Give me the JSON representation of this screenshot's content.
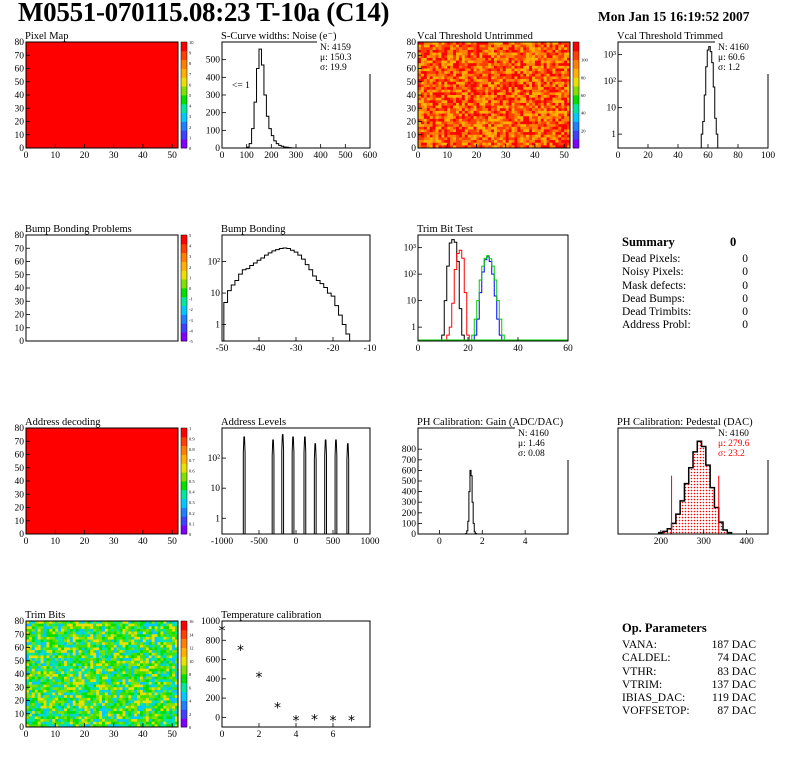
{
  "header": {
    "title": "M0551-070115.08:23 T-10a (C14)",
    "date": "Mon Jan 15 16:19:52 2007"
  },
  "colors": {
    "palette": [
      "#8000ff",
      "#4040ff",
      "#2080ff",
      "#00c8ff",
      "#00e8a0",
      "#00e000",
      "#80e000",
      "#e8e000",
      "#ffb000",
      "#ff8000",
      "#ff4000",
      "#ff0000"
    ],
    "histogram": "#000000",
    "trim_red": "#ff0000",
    "trim_green": "#00cc00",
    "trim_blue": "#0000ff",
    "pedestal_fill": "#ff0000",
    "fit_line": "#ff0000"
  },
  "summary": {
    "title": "Summary",
    "total": "0",
    "items": [
      {
        "label": "Dead Pixels:",
        "value": "0"
      },
      {
        "label": "Noisy Pixels:",
        "value": "0"
      },
      {
        "label": "Mask defects:",
        "value": "0"
      },
      {
        "label": "Dead Bumps:",
        "value": "0"
      },
      {
        "label": "Dead Trimbits:",
        "value": "0"
      },
      {
        "label": "Address Probl:",
        "value": "0"
      }
    ]
  },
  "op_params": {
    "title": "Op. Parameters",
    "items": [
      {
        "label": "VANA:",
        "value": "187 DAC"
      },
      {
        "label": "CALDEL:",
        "value": "74 DAC"
      },
      {
        "label": "VTHR:",
        "value": "83 DAC"
      },
      {
        "label": "VTRIM:",
        "value": "137 DAC"
      },
      {
        "label": "IBIAS_DAC:",
        "value": "119 DAC"
      },
      {
        "label": "VOFFSETOP:",
        "value": "87 DAC"
      }
    ]
  },
  "chart_data": [
    {
      "id": "pixel-map",
      "type": "heatmap",
      "title": "Pixel Map",
      "xlim": [
        0,
        52
      ],
      "ylim": [
        0,
        80
      ],
      "xticks": [
        0,
        10,
        20,
        30,
        40,
        50
      ],
      "yticks": [
        0,
        10,
        20,
        30,
        40,
        50,
        60,
        70,
        80
      ],
      "fill": "uniform",
      "value": 10,
      "zlim": [
        0,
        10
      ],
      "zticks": [
        0,
        1,
        2,
        3,
        4,
        5,
        6,
        7,
        8,
        9,
        10
      ]
    },
    {
      "id": "scurve-noise",
      "type": "line",
      "title": "S-Curve widths: Noise (e⁻)",
      "xlim": [
        0,
        600
      ],
      "ylim": [
        0,
        600
      ],
      "xticks": [
        0,
        100,
        200,
        300,
        400,
        500,
        600
      ],
      "yticks": [
        0,
        100,
        200,
        300,
        400,
        500
      ],
      "annotation": "<= 1",
      "stats": [
        "N: 4159",
        "μ: 150.3",
        "σ: 19.9"
      ],
      "x": [
        95,
        105,
        115,
        125,
        135,
        145,
        155,
        165,
        175,
        185,
        195,
        205,
        215,
        225,
        235,
        245,
        255,
        265,
        275,
        285,
        295
      ],
      "values": [
        0,
        5,
        25,
        110,
        260,
        450,
        560,
        470,
        300,
        180,
        110,
        70,
        40,
        25,
        15,
        10,
        6,
        4,
        2,
        1,
        0
      ]
    },
    {
      "id": "vcal-untrimmed",
      "type": "heatmap",
      "title": "Vcal Threshold Untrimmed",
      "xlim": [
        0,
        52
      ],
      "ylim": [
        0,
        80
      ],
      "xticks": [
        0,
        10,
        20,
        30,
        40,
        50
      ],
      "yticks": [
        0,
        10,
        20,
        30,
        40,
        50,
        60,
        70,
        80
      ],
      "fill": "noise",
      "colors": [
        "#ff0000",
        "#ff4000",
        "#ff8000",
        "#ffb000"
      ],
      "zlim": [
        0,
        120
      ],
      "zticks": [
        20,
        40,
        60,
        80,
        100
      ]
    },
    {
      "id": "vcal-trimmed",
      "type": "line",
      "title": "Vcal Threshold Trimmed",
      "log": true,
      "xlim": [
        0,
        100
      ],
      "ylim": [
        0.3,
        3000
      ],
      "xticks": [
        0,
        20,
        40,
        60,
        80,
        100
      ],
      "yticks": [
        1,
        10,
        100,
        1000
      ],
      "ytick_labels": [
        "1",
        "10",
        "10²",
        "10³"
      ],
      "stats": [
        "N: 4160",
        "μ: 60.6",
        "σ:  1.2"
      ],
      "x": [
        56,
        57,
        58,
        59,
        60,
        61,
        62,
        63,
        64,
        65,
        66
      ],
      "values": [
        1,
        3,
        30,
        350,
        1500,
        2000,
        1300,
        500,
        60,
        4,
        1
      ]
    },
    {
      "id": "bump-bonding-problems",
      "type": "heatmap",
      "title": "Bump Bonding Problems",
      "xlim": [
        0,
        52
      ],
      "ylim": [
        0,
        80
      ],
      "xticks": [],
      "yticks": [
        0,
        10,
        20,
        30,
        40,
        50,
        60,
        70,
        80
      ],
      "fill": "empty",
      "zlim": [
        -5,
        5
      ],
      "zticks": [
        -5,
        -4,
        -3,
        -2,
        -1,
        0,
        1,
        2,
        3,
        4,
        5
      ]
    },
    {
      "id": "bump-bonding",
      "type": "line",
      "title": "Bump Bonding",
      "log": true,
      "xlim": [
        -50,
        -10
      ],
      "ylim": [
        0.3,
        700
      ],
      "xticks": [
        -50,
        -40,
        -30,
        -20,
        -10
      ],
      "yticks": [
        1,
        10,
        100
      ],
      "ytick_labels": [
        "1",
        "10",
        "10²"
      ],
      "x": [
        -49,
        -48,
        -47,
        -46,
        -45,
        -44,
        -43,
        -42,
        -41,
        -40,
        -39,
        -38,
        -37,
        -36,
        -35,
        -34,
        -33,
        -32,
        -31,
        -30,
        -29,
        -28,
        -27,
        -26,
        -25,
        -24,
        -23,
        -22,
        -21,
        -20,
        -19,
        -18,
        -17,
        -16
      ],
      "values": [
        5,
        12,
        18,
        25,
        40,
        55,
        60,
        75,
        90,
        110,
        130,
        160,
        190,
        220,
        240,
        260,
        270,
        260,
        230,
        200,
        160,
        120,
        80,
        55,
        35,
        25,
        20,
        15,
        10,
        8,
        4,
        2,
        1,
        0.5
      ]
    },
    {
      "id": "trim-bit-test",
      "type": "line",
      "title": "Trim Bit Test",
      "log": true,
      "xlim": [
        0,
        60
      ],
      "ylim": [
        0.3,
        3000
      ],
      "xticks": [
        0,
        20,
        40,
        60
      ],
      "yticks": [
        1,
        10,
        100,
        1000
      ],
      "ytick_labels": [
        "1",
        "10",
        "10²",
        "10³"
      ],
      "series": [
        {
          "color": "#000000",
          "x": [
            10,
            11,
            12,
            13,
            14,
            15,
            16,
            17,
            18
          ],
          "values": [
            0.5,
            10,
            200,
            1500,
            2000,
            1600,
            300,
            5,
            0.5
          ]
        },
        {
          "color": "#ff0000",
          "x": [
            12,
            13,
            14,
            15,
            16,
            17,
            18,
            19,
            20
          ],
          "values": [
            0.5,
            1,
            8,
            150,
            600,
            800,
            400,
            20,
            0.5
          ]
        },
        {
          "color": "#0000ff",
          "x": [
            23,
            24,
            25,
            26,
            27,
            28,
            29,
            30,
            31,
            32,
            33
          ],
          "values": [
            0.5,
            2,
            20,
            120,
            350,
            450,
            300,
            100,
            15,
            2,
            0.5
          ]
        },
        {
          "color": "#00cc00",
          "x": [
            22,
            23,
            24,
            25,
            26,
            27,
            28,
            29,
            30,
            31,
            32,
            33,
            34
          ],
          "values": [
            0.5,
            2,
            10,
            60,
            200,
            400,
            500,
            380,
            200,
            60,
            10,
            2,
            0.5
          ]
        }
      ]
    },
    {
      "id": "address-decoding",
      "type": "heatmap",
      "title": "Address decoding",
      "xlim": [
        0,
        52
      ],
      "ylim": [
        0,
        80
      ],
      "xticks": [
        0,
        10,
        20,
        30,
        40,
        50
      ],
      "yticks": [
        0,
        10,
        20,
        30,
        40,
        50,
        60,
        70,
        80
      ],
      "fill": "uniform",
      "value": 1,
      "zlim": [
        0,
        1
      ],
      "zticks": [
        0,
        0.1,
        0.2,
        0.3,
        0.4,
        0.5,
        0.6,
        0.7,
        0.8,
        0.9,
        1
      ],
      "ztick_labels": [
        "0",
        "0.1",
        "0.2",
        "0.3",
        "0.4",
        "0.5",
        "0.6",
        "0.7",
        "0.8",
        "0.9",
        "1"
      ]
    },
    {
      "id": "address-levels",
      "type": "line",
      "title": "Address Levels",
      "log": true,
      "xlim": [
        -1000,
        1000
      ],
      "ylim": [
        0.3,
        1000
      ],
      "xticks": [
        -1000,
        -500,
        0,
        500,
        1000
      ],
      "yticks": [
        1,
        10,
        100
      ],
      "ytick_labels": [
        "1",
        "10",
        "10²"
      ],
      "peaks": [
        -700,
        -310,
        -180,
        -40,
        120,
        260,
        400,
        540,
        700
      ],
      "peak_heights": [
        500,
        400,
        600,
        500,
        500,
        300,
        400,
        400,
        300
      ]
    },
    {
      "id": "ph-gain",
      "type": "line",
      "title": "PH Calibration: Gain (ADC/DAC)",
      "xlim": [
        -1,
        6
      ],
      "ylim": [
        0,
        1000
      ],
      "xticks": [
        0,
        2,
        4
      ],
      "yticks": [
        0,
        100,
        200,
        300,
        400,
        500,
        600,
        700,
        800
      ],
      "stats": [
        "N: 4160",
        "μ: 1.46",
        "σ: 0.08"
      ],
      "x": [
        1.2,
        1.25,
        1.3,
        1.35,
        1.4,
        1.45,
        1.5,
        1.55,
        1.6,
        1.65,
        1.7,
        1.75
      ],
      "values": [
        0,
        5,
        30,
        120,
        400,
        600,
        550,
        300,
        100,
        20,
        5,
        0
      ]
    },
    {
      "id": "ph-pedestal",
      "type": "area",
      "title": "PH Calibration: Pedestal (DAC)",
      "xlim": [
        100,
        450
      ],
      "ylim": [
        0,
        80
      ],
      "xticks": [
        200,
        300,
        400
      ],
      "yticks": [],
      "stats": [
        "N: 4160",
        "μ: 279.6",
        "σ: 23.2"
      ],
      "stats_colors": [
        "#000000",
        "#ff0000",
        "#ff0000"
      ],
      "limits": [
        225,
        335
      ],
      "x": [
        200,
        210,
        220,
        230,
        240,
        250,
        260,
        270,
        280,
        290,
        300,
        310,
        320,
        330,
        340,
        350,
        360
      ],
      "values": [
        1,
        2,
        4,
        8,
        15,
        25,
        38,
        50,
        62,
        70,
        66,
        52,
        35,
        20,
        9,
        3,
        1
      ]
    },
    {
      "id": "trim-bits",
      "type": "heatmap",
      "title": "Trim Bits",
      "xlim": [
        0,
        52
      ],
      "ylim": [
        0,
        80
      ],
      "xticks": [
        0,
        10,
        20,
        30,
        40,
        50
      ],
      "yticks": [
        0,
        10,
        20,
        30,
        40,
        50,
        60,
        70,
        80
      ],
      "fill": "noise",
      "colors": [
        "#00e000",
        "#40e000",
        "#80e000",
        "#00e8a0",
        "#00c8ff",
        "#e8e000"
      ],
      "zlim": [
        0,
        16
      ],
      "zticks": [
        0,
        2,
        4,
        6,
        8,
        10,
        12,
        14,
        16
      ]
    },
    {
      "id": "temperature-calibration",
      "type": "scatter",
      "title": "Temperature calibration",
      "xlim": [
        0,
        8
      ],
      "ylim": [
        -100,
        1000
      ],
      "xticks": [
        0,
        2,
        4,
        6
      ],
      "yticks": [
        0,
        200,
        400,
        600,
        800,
        1000
      ],
      "x": [
        0,
        1,
        2,
        3,
        4,
        5,
        6,
        7
      ],
      "values": [
        900,
        700,
        420,
        100,
        -30,
        -20,
        -30,
        -30
      ]
    }
  ]
}
